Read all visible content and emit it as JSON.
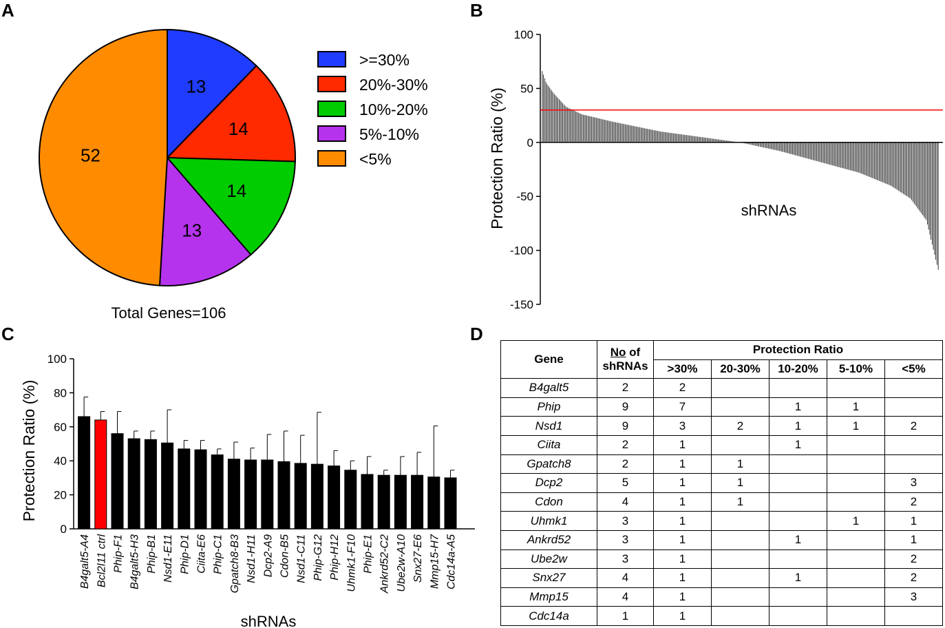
{
  "panels": {
    "a": "A",
    "b": "B",
    "c": "C",
    "d": "D"
  },
  "chart_data": [
    {
      "type": "pie",
      "panel": "A",
      "slices": [
        {
          "label": ">=30%",
          "value": 13,
          "color": "#1f3cff"
        },
        {
          "label": "20%-30%",
          "value": 14,
          "color": "#ff2a00"
        },
        {
          "label": "10%-20%",
          "value": 14,
          "color": "#00cc00"
        },
        {
          "label": "5%-10%",
          "value": 13,
          "color": "#b633ee"
        },
        {
          "label": "<5%",
          "value": 52,
          "color": "#ff8c00"
        }
      ],
      "caption": "Total Genes=106"
    },
    {
      "type": "bar",
      "panel": "B",
      "ylabel": "Protection Ratio (%)",
      "xlabel": "shRNAs",
      "ylim": [
        -150,
        100
      ],
      "yticks": [
        "100",
        "50",
        "0",
        "-50",
        "-100",
        "-150"
      ],
      "threshold": 30,
      "threshold_color": "#ff0000",
      "n_bars": 330,
      "profile": [
        [
          0,
          66
        ],
        [
          0.01,
          55
        ],
        [
          0.03,
          45
        ],
        [
          0.06,
          33
        ],
        [
          0.1,
          26
        ],
        [
          0.18,
          19
        ],
        [
          0.3,
          10
        ],
        [
          0.42,
          4
        ],
        [
          0.5,
          0
        ],
        [
          0.6,
          -8
        ],
        [
          0.7,
          -18
        ],
        [
          0.8,
          -28
        ],
        [
          0.88,
          -40
        ],
        [
          0.93,
          -52
        ],
        [
          0.97,
          -72
        ],
        [
          1.0,
          -118
        ]
      ]
    },
    {
      "type": "bar",
      "panel": "C",
      "ylabel": "Protection Ratio (%)",
      "xlabel": "shRNAs",
      "ylim": [
        0,
        100
      ],
      "yticks": [
        0,
        20,
        40,
        60,
        80,
        100
      ],
      "bar_color": "#000000",
      "highlight_color": "#ff0000",
      "categories": [
        "B4galt5-A4",
        "Bcl2l11 ctrl",
        "Phip-F1",
        "B4galt5-H3",
        "Phip-B1",
        "Nsd1-E11",
        "Phip-D1",
        "Ciita-E6",
        "Phip-C1",
        "Gpatch8-B3",
        "Nsd1-H11",
        "Dcp2-A9",
        "Cdon-B5",
        "Nsd1-C11",
        "Phip-G12",
        "Phip-H12",
        "Uhmk1-F10",
        "Phip-E1",
        "Ankrd52-C2",
        "Ube2w-A10",
        "Snx27-E6",
        "Mmp15-H7",
        "Cdc14a-A5"
      ],
      "values": [
        66,
        64,
        56,
        53,
        52.5,
        50.5,
        47,
        46.5,
        43.5,
        41,
        40.5,
        40.5,
        39.5,
        38.5,
        38,
        37,
        34.5,
        32,
        31.5,
        31.5,
        31.5,
        30.5,
        30
      ],
      "errors": [
        11.5,
        5,
        13,
        4.5,
        5,
        19.5,
        5,
        5.5,
        3.5,
        10,
        7,
        15,
        18,
        16.5,
        30.5,
        9,
        5.5,
        10.5,
        3,
        11,
        13.5,
        30,
        4.5
      ],
      "highlight_index": 1
    }
  ],
  "table": {
    "header_gene": "Gene",
    "header_no_prefix": "No",
    "header_no_suffix": " of",
    "header_no_line2": "shRNAs",
    "header_group": "Protection Ratio",
    "sub_headers": [
      ">30%",
      "20-30%",
      "10-20%",
      "5-10%",
      "<5%"
    ],
    "rows": [
      [
        "B4galt5",
        "2",
        "2",
        "",
        "",
        "",
        ""
      ],
      [
        "Phip",
        "9",
        "7",
        "",
        "1",
        "1",
        ""
      ],
      [
        "Nsd1",
        "9",
        "3",
        "2",
        "1",
        "1",
        "2"
      ],
      [
        "Ciita",
        "2",
        "1",
        "",
        "1",
        "",
        ""
      ],
      [
        "Gpatch8",
        "2",
        "1",
        "1",
        "",
        "",
        ""
      ],
      [
        "Dcp2",
        "5",
        "1",
        "1",
        "",
        "",
        "3"
      ],
      [
        "Cdon",
        "4",
        "1",
        "1",
        "",
        "",
        "2"
      ],
      [
        "Uhmk1",
        "3",
        "1",
        "",
        "",
        "1",
        "1"
      ],
      [
        "Ankrd52",
        "3",
        "1",
        "",
        "1",
        "",
        "1"
      ],
      [
        "Ube2w",
        "3",
        "1",
        "",
        "",
        "",
        "2"
      ],
      [
        "Snx27",
        "4",
        "1",
        "",
        "1",
        "",
        "2"
      ],
      [
        "Mmp15",
        "4",
        "1",
        "",
        "",
        "",
        "3"
      ],
      [
        "Cdc14a",
        "1",
        "1",
        "",
        "",
        "",
        ""
      ]
    ]
  }
}
